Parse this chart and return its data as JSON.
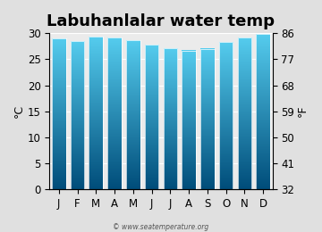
{
  "title": "Labuhanlalar water temp",
  "months": [
    "J",
    "F",
    "M",
    "A",
    "M",
    "J",
    "J",
    "A",
    "S",
    "O",
    "N",
    "D"
  ],
  "values_c": [
    29.0,
    28.5,
    29.3,
    29.2,
    28.7,
    27.8,
    27.1,
    26.7,
    27.0,
    28.3,
    29.2,
    29.8
  ],
  "ylim_c": [
    0,
    30
  ],
  "yticks_c": [
    0,
    5,
    10,
    15,
    20,
    25,
    30
  ],
  "yticks_f": [
    32,
    41,
    50,
    59,
    68,
    77,
    86
  ],
  "ylabel_left": "°C",
  "ylabel_right": "°F",
  "watermark": "© www.seatemperature.org",
  "bg_color": "#e0e0e0",
  "plot_bg_color": "#ebebeb",
  "bar_color_top": "#55ccee",
  "bar_color_bottom": "#004d7a",
  "title_fontsize": 13,
  "tick_fontsize": 8.5,
  "label_fontsize": 9
}
